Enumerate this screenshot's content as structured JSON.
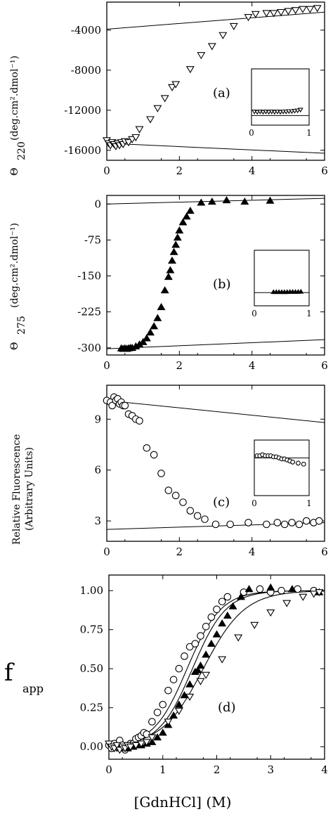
{
  "chart_data": [
    {
      "type": "scatter",
      "panel_label": "(a)",
      "ylabel_sym": "Θ",
      "ylabel_sub": "220",
      "ylabel_units": "(deg.cm².dmol⁻¹)",
      "xlim": [
        0,
        6
      ],
      "ylim": [
        -17000,
        -1200
      ],
      "xticks": [
        "0",
        "2",
        "4",
        "6"
      ],
      "yticks": [
        -16000,
        -12000,
        -8000,
        -4000
      ],
      "ytick_labels": [
        "-16000",
        "-12000",
        "-8000",
        "-4000"
      ],
      "marker": "triangle-down-open",
      "points": [
        [
          0.0,
          -15000
        ],
        [
          0.05,
          -15300
        ],
        [
          0.1,
          -15500
        ],
        [
          0.15,
          -15200
        ],
        [
          0.2,
          -15400
        ],
        [
          0.25,
          -15600
        ],
        [
          0.3,
          -15300
        ],
        [
          0.35,
          -15500
        ],
        [
          0.4,
          -15200
        ],
        [
          0.45,
          -15400
        ],
        [
          0.5,
          -15100
        ],
        [
          0.6,
          -15200
        ],
        [
          0.7,
          -14900
        ],
        [
          0.8,
          -14700
        ],
        [
          0.9,
          -13900
        ],
        [
          1.2,
          -12900
        ],
        [
          1.4,
          -11800
        ],
        [
          1.6,
          -10800
        ],
        [
          1.8,
          -9700
        ],
        [
          1.9,
          -9400
        ],
        [
          2.3,
          -7900
        ],
        [
          2.6,
          -6500
        ],
        [
          2.9,
          -5600
        ],
        [
          3.2,
          -4500
        ],
        [
          3.5,
          -3600
        ],
        [
          3.9,
          -2700
        ],
        [
          4.1,
          -2400
        ],
        [
          4.4,
          -2300
        ],
        [
          4.6,
          -2300
        ],
        [
          4.8,
          -2200
        ],
        [
          5.0,
          -2100
        ],
        [
          5.2,
          -2000
        ],
        [
          5.4,
          -1900
        ],
        [
          5.6,
          -1900
        ],
        [
          5.8,
          -1800
        ]
      ],
      "baselines": [
        {
          "x": [
            0,
            6
          ],
          "y": [
            -3900,
            -2200
          ]
        },
        {
          "x": [
            0,
            6
          ],
          "y": [
            -15300,
            -16300
          ]
        }
      ],
      "inset": {
        "xlim": [
          0,
          1
        ],
        "xticks": [
          "0",
          "1"
        ],
        "ylim": [
          -17000,
          -1200
        ],
        "marker": "triangle-down-open",
        "points": [
          [
            0.05,
            -13200
          ],
          [
            0.1,
            -13300
          ],
          [
            0.15,
            -13200
          ],
          [
            0.2,
            -13300
          ],
          [
            0.25,
            -13200
          ],
          [
            0.3,
            -13300
          ],
          [
            0.35,
            -13200
          ],
          [
            0.4,
            -13300
          ],
          [
            0.45,
            -13200
          ],
          [
            0.5,
            -13300
          ],
          [
            0.55,
            -13200
          ],
          [
            0.6,
            -13200
          ],
          [
            0.65,
            -13100
          ],
          [
            0.7,
            -13100
          ],
          [
            0.75,
            -13000
          ],
          [
            0.8,
            -12900
          ],
          [
            0.85,
            -12700
          ]
        ],
        "baseline": {
          "x": [
            0,
            1
          ],
          "y": [
            -14300,
            -14300
          ]
        }
      }
    },
    {
      "type": "scatter",
      "panel_label": "(b)",
      "ylabel_sym": "Θ",
      "ylabel_sub": "275",
      "ylabel_units": "(deg.cm².dmol⁻¹)",
      "xlim": [
        0,
        6
      ],
      "ylim": [
        -315,
        18
      ],
      "xticks": [
        "0",
        "2",
        "4",
        "6"
      ],
      "yticks": [
        -300,
        -225,
        -150,
        -75,
        0
      ],
      "ytick_labels": [
        "-300",
        "-225",
        "-150",
        "-75",
        "0"
      ],
      "marker": "triangle-up-filled",
      "points": [
        [
          0.4,
          -301
        ],
        [
          0.45,
          -302
        ],
        [
          0.5,
          -301
        ],
        [
          0.55,
          -302
        ],
        [
          0.6,
          -301
        ],
        [
          0.65,
          -300
        ],
        [
          0.7,
          -300
        ],
        [
          0.8,
          -297
        ],
        [
          0.9,
          -293
        ],
        [
          1.0,
          -288
        ],
        [
          1.1,
          -280
        ],
        [
          1.2,
          -268
        ],
        [
          1.3,
          -255
        ],
        [
          1.4,
          -238
        ],
        [
          1.5,
          -215
        ],
        [
          1.6,
          -180
        ],
        [
          1.7,
          -152
        ],
        [
          1.75,
          -138
        ],
        [
          1.8,
          -118
        ],
        [
          1.85,
          -100
        ],
        [
          1.9,
          -85
        ],
        [
          1.95,
          -70
        ],
        [
          2.0,
          -55
        ],
        [
          2.1,
          -38
        ],
        [
          2.2,
          -26
        ],
        [
          2.3,
          -14
        ],
        [
          2.6,
          3
        ],
        [
          2.9,
          5
        ],
        [
          3.3,
          8
        ],
        [
          3.8,
          5
        ],
        [
          4.5,
          7
        ]
      ],
      "baselines": [
        {
          "x": [
            0,
            6
          ],
          "y": [
            0,
            12
          ]
        },
        {
          "x": [
            0,
            6
          ],
          "y": [
            -302,
            -283
          ]
        }
      ],
      "inset": {
        "xlim": [
          0,
          1
        ],
        "xticks": [
          "0",
          "1"
        ],
        "ylim": [
          -315,
          18
        ],
        "marker": "triangle-up-filled",
        "points": [
          [
            0.35,
            -232
          ],
          [
            0.4,
            -232
          ],
          [
            0.45,
            -232
          ],
          [
            0.5,
            -232
          ],
          [
            0.55,
            -232
          ],
          [
            0.6,
            -232
          ],
          [
            0.65,
            -231
          ],
          [
            0.7,
            -231
          ],
          [
            0.75,
            -231
          ],
          [
            0.8,
            -231
          ],
          [
            0.85,
            -230
          ]
        ],
        "baseline": {
          "x": [
            0,
            1
          ],
          "y": [
            -236,
            -236
          ]
        }
      }
    },
    {
      "type": "scatter",
      "panel_label": "(c)",
      "ylabel_main": "Relative Fluorescence",
      "ylabel_units": "(Arbitrary Units)",
      "xlim": [
        0,
        6
      ],
      "ylim": [
        1.8,
        11.0
      ],
      "xticks": [
        "0",
        "2",
        "4",
        "6"
      ],
      "yticks": [
        3,
        6,
        9
      ],
      "ytick_labels": [
        "3",
        "6",
        "9"
      ],
      "marker": "circle-open",
      "points": [
        [
          0.0,
          10.1
        ],
        [
          0.1,
          10.0
        ],
        [
          0.15,
          9.8
        ],
        [
          0.2,
          10.3
        ],
        [
          0.25,
          10.1
        ],
        [
          0.3,
          10.2
        ],
        [
          0.35,
          9.9
        ],
        [
          0.4,
          10.0
        ],
        [
          0.45,
          9.8
        ],
        [
          0.5,
          9.8
        ],
        [
          0.6,
          9.3
        ],
        [
          0.7,
          9.2
        ],
        [
          0.8,
          9.0
        ],
        [
          0.9,
          8.9
        ],
        [
          1.1,
          7.3
        ],
        [
          1.3,
          6.9
        ],
        [
          1.5,
          5.8
        ],
        [
          1.7,
          4.8
        ],
        [
          1.9,
          4.5
        ],
        [
          2.1,
          4.1
        ],
        [
          2.3,
          3.6
        ],
        [
          2.5,
          3.3
        ],
        [
          2.7,
          3.1
        ],
        [
          3.0,
          2.8
        ],
        [
          3.4,
          2.8
        ],
        [
          3.9,
          2.9
        ],
        [
          4.4,
          2.8
        ],
        [
          4.7,
          2.9
        ],
        [
          4.9,
          2.8
        ],
        [
          5.1,
          2.9
        ],
        [
          5.3,
          2.8
        ],
        [
          5.5,
          3.0
        ],
        [
          5.7,
          2.9
        ],
        [
          5.85,
          3.0
        ]
      ],
      "baselines": [
        {
          "x": [
            0,
            6
          ],
          "y": [
            10.1,
            8.8
          ]
        },
        {
          "x": [
            0,
            6
          ],
          "y": [
            2.5,
            2.9
          ]
        }
      ],
      "inset": {
        "xlim": [
          0,
          1
        ],
        "xticks": [
          "0",
          "1"
        ],
        "ylim": [
          3.5,
          8.8
        ],
        "marker": "circle-open",
        "points": [
          [
            0.05,
            7.3
          ],
          [
            0.1,
            7.3
          ],
          [
            0.15,
            7.4
          ],
          [
            0.2,
            7.3
          ],
          [
            0.25,
            7.3
          ],
          [
            0.3,
            7.3
          ],
          [
            0.35,
            7.2
          ],
          [
            0.4,
            7.2
          ],
          [
            0.45,
            7.1
          ],
          [
            0.5,
            7.0
          ],
          [
            0.55,
            7.0
          ],
          [
            0.6,
            6.9
          ],
          [
            0.65,
            6.8
          ],
          [
            0.7,
            6.7
          ],
          [
            0.8,
            6.6
          ],
          [
            0.9,
            6.5
          ]
        ],
        "baseline": {
          "x": [
            0,
            1
          ],
          "y": [
            7.1,
            7.1
          ]
        }
      }
    },
    {
      "type": "scatter",
      "panel_label": "(d)",
      "ylabel_main": "f",
      "ylabel_sub": "app",
      "xlim": [
        0,
        4
      ],
      "ylim": [
        -0.08,
        1.1
      ],
      "xticks": [
        "0",
        "1",
        "2",
        "3",
        "4"
      ],
      "yticks": [
        0.0,
        0.25,
        0.5,
        0.75,
        1.0
      ],
      "ytick_labels": [
        "0.00",
        "0.25",
        "0.50",
        "0.75",
        "1.00"
      ],
      "xlabel": "[GdnHCl] (M)",
      "series": [
        {
          "marker": "circle-open",
          "fit": {
            "m": 1.45,
            "k": 3.2
          },
          "points": [
            [
              0.0,
              0.01
            ],
            [
              0.05,
              -0.01
            ],
            [
              0.1,
              0.02
            ],
            [
              0.15,
              0.0
            ],
            [
              0.2,
              0.04
            ],
            [
              0.25,
              0.01
            ],
            [
              0.3,
              -0.02
            ],
            [
              0.35,
              0.0
            ],
            [
              0.4,
              0.02
            ],
            [
              0.45,
              0.02
            ],
            [
              0.5,
              0.05
            ],
            [
              0.55,
              0.06
            ],
            [
              0.6,
              0.07
            ],
            [
              0.65,
              0.09
            ],
            [
              0.7,
              0.08
            ],
            [
              0.8,
              0.16
            ],
            [
              0.9,
              0.22
            ],
            [
              1.0,
              0.27
            ],
            [
              1.1,
              0.36
            ],
            [
              1.2,
              0.43
            ],
            [
              1.3,
              0.5
            ],
            [
              1.4,
              0.58
            ],
            [
              1.5,
              0.64
            ],
            [
              1.6,
              0.66
            ],
            [
              1.7,
              0.71
            ],
            [
              1.8,
              0.77
            ],
            [
              1.9,
              0.83
            ],
            [
              2.0,
              0.88
            ],
            [
              2.1,
              0.93
            ],
            [
              2.2,
              0.96
            ],
            [
              2.5,
              0.99
            ],
            [
              2.8,
              1.01
            ],
            [
              3.0,
              0.99
            ],
            [
              3.2,
              1.0
            ],
            [
              3.5,
              1.01
            ],
            [
              3.8,
              1.0
            ]
          ]
        },
        {
          "marker": "triangle-up-filled",
          "fit": {
            "m": 1.55,
            "k": 3.2
          },
          "points": [
            [
              0.2,
              -0.01
            ],
            [
              0.3,
              0.0
            ],
            [
              0.35,
              -0.01
            ],
            [
              0.4,
              0.0
            ],
            [
              0.45,
              0.0
            ],
            [
              0.5,
              0.01
            ],
            [
              0.55,
              0.01
            ],
            [
              0.6,
              0.01
            ],
            [
              0.7,
              0.02
            ],
            [
              0.8,
              0.03
            ],
            [
              0.9,
              0.06
            ],
            [
              1.0,
              0.09
            ],
            [
              1.1,
              0.14
            ],
            [
              1.2,
              0.2
            ],
            [
              1.3,
              0.27
            ],
            [
              1.4,
              0.33
            ],
            [
              1.5,
              0.4
            ],
            [
              1.6,
              0.48
            ],
            [
              1.65,
              0.49
            ],
            [
              1.7,
              0.52
            ],
            [
              1.8,
              0.59
            ],
            [
              1.9,
              0.66
            ],
            [
              2.0,
              0.72
            ],
            [
              2.1,
              0.79
            ],
            [
              2.2,
              0.84
            ],
            [
              2.3,
              0.9
            ],
            [
              2.45,
              0.96
            ],
            [
              2.6,
              1.01
            ],
            [
              3.0,
              1.02
            ],
            [
              3.4,
              1.01
            ],
            [
              3.9,
              0.99
            ]
          ]
        },
        {
          "marker": "triangle-down-open",
          "fit": {
            "m": 1.75,
            "k": 2.6
          },
          "points": [
            [
              0.0,
              0.02
            ],
            [
              0.05,
              0.0
            ],
            [
              0.1,
              -0.01
            ],
            [
              0.15,
              0.01
            ],
            [
              0.2,
              -0.02
            ],
            [
              0.25,
              0.0
            ],
            [
              0.3,
              -0.01
            ],
            [
              0.35,
              0.01
            ],
            [
              0.4,
              0.0
            ],
            [
              0.5,
              0.01
            ],
            [
              0.6,
              0.02
            ],
            [
              0.7,
              0.03
            ],
            [
              0.8,
              0.06
            ],
            [
              1.1,
              0.16
            ],
            [
              1.3,
              0.23
            ],
            [
              1.5,
              0.32
            ],
            [
              1.7,
              0.42
            ],
            [
              1.8,
              0.46
            ],
            [
              2.1,
              0.56
            ],
            [
              2.4,
              0.7
            ],
            [
              2.7,
              0.78
            ],
            [
              3.0,
              0.86
            ],
            [
              3.3,
              0.92
            ],
            [
              3.6,
              0.96
            ],
            [
              3.8,
              0.98
            ],
            [
              3.9,
              0.99
            ]
          ]
        }
      ]
    }
  ]
}
